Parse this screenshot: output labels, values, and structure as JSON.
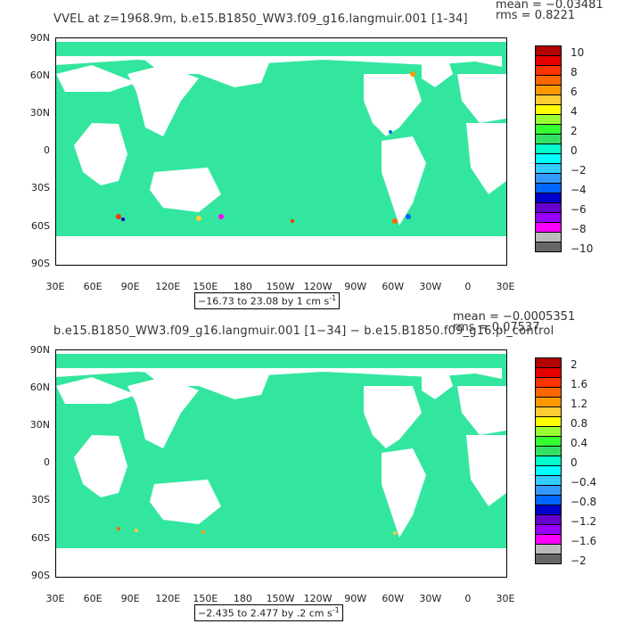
{
  "panels": [
    {
      "title": "VVEL at z=1968.9m, b.e15.B1850_WW3.f09_g16.langmuir.001 [1-34]",
      "mean_text": "mean = −0.03481",
      "rms_text": "rms = 0.8221",
      "range_text": "−16.73 to 23.08 by 1 cm s",
      "range_sup": "-1",
      "colorbar_labels": [
        "10",
        "8",
        "6",
        "4",
        "2",
        "0",
        "−2",
        "−4",
        "−6",
        "−8",
        "−10"
      ],
      "colors": [
        "#b30000",
        "#e60000",
        "#ff3300",
        "#ff6600",
        "#ff9900",
        "#ffcc33",
        "#ffff00",
        "#99ff33",
        "#33ff33",
        "#33e066",
        "#00ffcc",
        "#00ffff",
        "#33ccff",
        "#3399ff",
        "#0066ff",
        "#0000cc",
        "#6600cc",
        "#9900ff",
        "#ff00ff",
        "#bbbbbb",
        "#666666"
      ]
    },
    {
      "title": "b.e15.B1850_WW3.f09_g16.langmuir.001 [1−34] − b.e15.B1850.f09_g16.pi_control",
      "mean_text": "mean = −0.0005351",
      "rms_text": "rms = 0.07537",
      "range_text": "−2.435 to 2.477 by .2 cm s",
      "range_sup": "-1",
      "colorbar_labels": [
        "2",
        "1.6",
        "1.2",
        "0.8",
        "0.4",
        "0",
        "−0.4",
        "−0.8",
        "−1.2",
        "−1.6",
        "−2"
      ],
      "colors": [
        "#b30000",
        "#e60000",
        "#ff3300",
        "#ff6600",
        "#ff9900",
        "#ffcc33",
        "#ffff00",
        "#99ff33",
        "#33ff33",
        "#33e066",
        "#00ffcc",
        "#00ffff",
        "#33ccff",
        "#3399ff",
        "#0066ff",
        "#0000cc",
        "#6600cc",
        "#9900ff",
        "#ff00ff",
        "#bbbbbb",
        "#666666"
      ]
    }
  ],
  "lat_labels": [
    "90N",
    "60N",
    "30N",
    "0",
    "30S",
    "60S",
    "90S"
  ],
  "lon_labels": [
    "30E",
    "60E",
    "90E",
    "120E",
    "150E",
    "180",
    "150W",
    "120W",
    "90W",
    "60W",
    "30W",
    "0",
    "30E"
  ],
  "ocean_color": "#33e6a0",
  "ocean_color2": "#2ee0b8",
  "land_color": "#ffffff"
}
